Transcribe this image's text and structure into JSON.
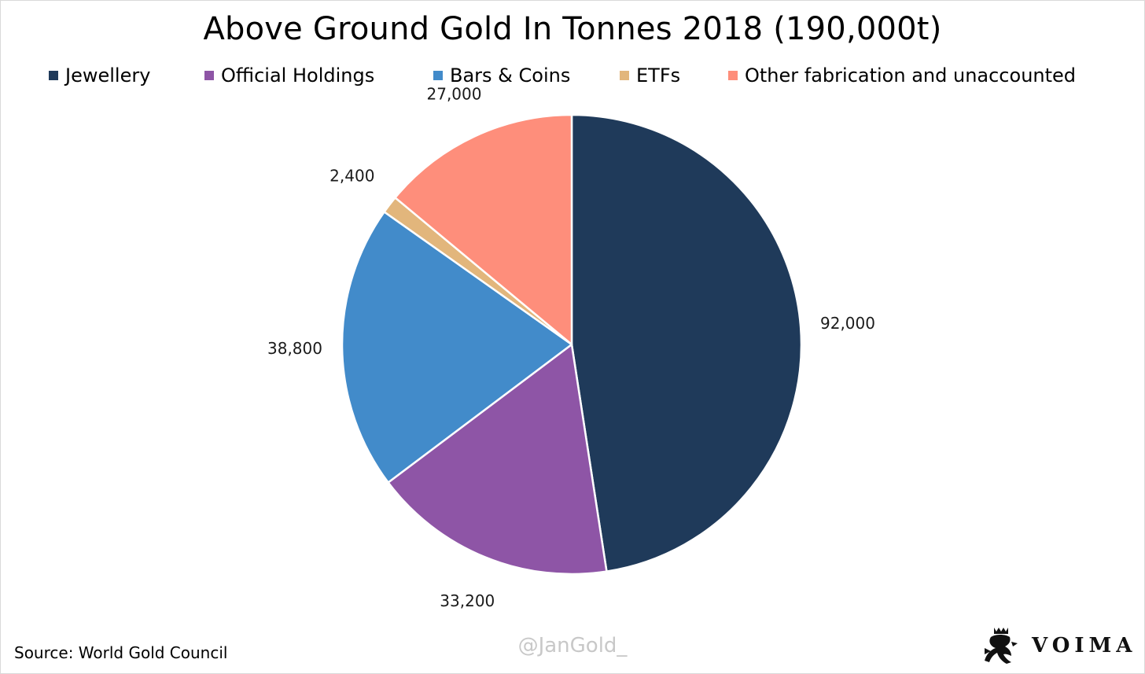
{
  "chart_data": {
    "type": "pie",
    "title": "Above Ground Gold In Tonnes 2018 (190,000t)",
    "legend_position": "top",
    "series": [
      {
        "name": "Jewellery",
        "value": 92000,
        "label": "92,000",
        "color": "#1f3a5a"
      },
      {
        "name": "Official Holdings",
        "value": 33200,
        "label": "33,200",
        "color": "#8e55a6"
      },
      {
        "name": "Bars & Coins",
        "value": 38800,
        "label": "38,800",
        "color": "#428bca"
      },
      {
        "name": "ETFs",
        "value": 2400,
        "label": "2,400",
        "color": "#e2b67c"
      },
      {
        "name": "Other fabrication and unaccounted",
        "value": 27000,
        "label": "27,000",
        "color": "#fe8e7b"
      }
    ]
  },
  "footer": {
    "source": "Source: World Gold Council",
    "watermark": "@JanGold_",
    "logo_text": "VOIMA",
    "logo_icon": "lion-crest-icon"
  }
}
